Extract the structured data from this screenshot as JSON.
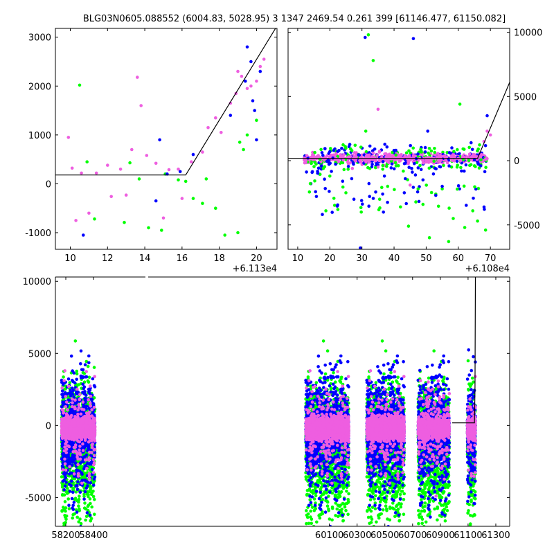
{
  "title": "BLG03N0605.088552 (6004.83, 5028.95)   3 1347 2469.54 0.261 399 [61146.477, 61150.082]",
  "colors": {
    "green": "#00ff00",
    "blue": "#0000ff",
    "pink": "#ee5ee0",
    "model": "#000000"
  },
  "chart_data": [
    {
      "id": "top-left",
      "type": "scatter",
      "xlim": [
        9.2,
        21.1
      ],
      "ylim": [
        -1340,
        3180
      ],
      "xticks": [
        10,
        12,
        14,
        16,
        18,
        20
      ],
      "yticks": [
        -1000,
        0,
        1000,
        2000,
        3000
      ],
      "yaxis_side": "left",
      "offset_label": "+6.113e4",
      "model_line": {
        "x": [
          9.2,
          16.2,
          21.1
        ],
        "y": [
          180,
          180,
          3230
        ]
      },
      "series": [
        {
          "name": "green",
          "x": [
            10.5,
            10.9,
            11.3,
            12.9,
            13.2,
            13.7,
            14.2,
            14.9,
            15.1,
            15.8,
            16.2,
            16.6,
            17.1,
            17.3,
            17.8,
            18.3,
            19.0,
            19.1,
            19.3,
            19.5,
            20.0
          ],
          "y": [
            2020,
            450,
            -720,
            -790,
            430,
            100,
            -900,
            -950,
            200,
            80,
            50,
            -300,
            -400,
            100,
            -500,
            -1050,
            -1000,
            850,
            700,
            1000,
            1300
          ]
        },
        {
          "name": "blue",
          "x": [
            10.7,
            14.6,
            14.8,
            15.2,
            15.9,
            16.6,
            18.6,
            19.4,
            19.5,
            19.7,
            19.8,
            19.9,
            20.0,
            20.2
          ],
          "y": [
            -1050,
            -350,
            900,
            200,
            250,
            600,
            1400,
            2100,
            2800,
            2500,
            1700,
            1500,
            900,
            2300
          ]
        },
        {
          "name": "pink",
          "x": [
            9.9,
            10.1,
            10.3,
            10.6,
            11.0,
            11.4,
            12.0,
            12.2,
            12.7,
            13.0,
            13.3,
            13.6,
            13.8,
            14.1,
            14.6,
            15.0,
            15.3,
            15.8,
            16.0,
            16.5,
            17.1,
            17.4,
            17.8,
            18.1,
            18.6,
            18.9,
            19.0,
            19.2,
            19.5,
            19.7,
            20.0,
            20.2,
            20.4
          ],
          "y": [
            950,
            320,
            -750,
            220,
            -600,
            220,
            380,
            -260,
            300,
            -230,
            700,
            2180,
            1600,
            580,
            420,
            -700,
            290,
            300,
            -300,
            450,
            650,
            1150,
            1350,
            1050,
            1650,
            1850,
            2300,
            2200,
            1950,
            2000,
            2100,
            2400,
            2550
          ]
        }
      ]
    },
    {
      "id": "top-right",
      "type": "scatter",
      "xlim": [
        7.0,
        76.0
      ],
      "ylim": [
        -6900,
        10300
      ],
      "xticks": [
        10,
        20,
        30,
        40,
        50,
        60,
        70
      ],
      "yticks": [
        -5000,
        0,
        5000,
        10000
      ],
      "yaxis_side": "right",
      "offset_label": "+6.108e4",
      "model_line": {
        "x": [
          7.0,
          66.0,
          76.0
        ],
        "y": [
          180,
          180,
          6100
        ]
      },
      "series": [
        {
          "name": "green",
          "x": [
            20.0,
            22.5,
            25.0,
            29.8,
            31.2,
            32.0,
            33.5,
            35.5,
            38.0,
            42.0,
            44.5,
            47.5,
            49.0,
            51.0,
            53.0,
            55.0,
            57.0,
            60.5,
            62.0,
            64.5,
            66.0,
            68.5
          ],
          "y": [
            -1200,
            -3800,
            -2500,
            -4000,
            2300,
            9800,
            7800,
            -3000,
            -2000,
            -3600,
            -5100,
            -2200,
            -3400,
            -6000,
            -2600,
            -2200,
            -6300,
            4400,
            -5200,
            -3900,
            -4700,
            -5400
          ]
        },
        {
          "name": "blue",
          "x": [
            20.0,
            24.0,
            27.5,
            29.5,
            31.0,
            34.0,
            37.0,
            40.0,
            43.5,
            46.0,
            49.0,
            50.5,
            53.0,
            55.0,
            58.0,
            61.0,
            64.0,
            67.0,
            69.0
          ],
          "y": [
            700,
            -1600,
            -3000,
            -6800,
            9600,
            900,
            -1200,
            800,
            -1400,
            9500,
            -1500,
            2300,
            -2700,
            -2000,
            1000,
            -800,
            1400,
            -400,
            3500
          ]
        },
        {
          "name": "pink",
          "x": [
            12,
            14,
            16,
            18,
            20,
            22,
            24,
            26,
            28,
            30,
            32,
            34,
            35,
            36,
            38,
            40,
            42,
            44,
            46,
            48,
            50,
            52,
            54,
            56,
            58,
            60,
            62,
            64,
            66,
            68,
            69,
            70,
            45,
            27,
            35
          ],
          "y": [
            200,
            150,
            250,
            180,
            220,
            160,
            240,
            200,
            210,
            190,
            230,
            170,
            4000,
            200,
            260,
            180,
            210,
            190,
            240,
            150,
            210,
            200,
            230,
            170,
            220,
            180,
            250,
            190,
            300,
            1500,
            2300,
            2000,
            -1900,
            -600,
            -500
          ]
        }
      ]
    },
    {
      "id": "bottom",
      "type": "scatter",
      "xlim": [
        58125,
        61400
      ],
      "ylim": [
        -7000,
        10300
      ],
      "xticks": [
        58200,
        58400,
        60100,
        60300,
        60500,
        60700,
        60900,
        61100,
        61300
      ],
      "yticks": [
        -5000,
        0,
        5000,
        10000
      ],
      "yaxis_side": "left",
      "axis_break": true,
      "model_line": {
        "x": [
          60985,
          61146,
          61150,
          61153
        ],
        "y": [
          180,
          180,
          2400,
          10300
        ]
      },
      "seasons": [
        {
          "x_from": 58170,
          "x_to": 58410,
          "core_half_spread": 700
        },
        {
          "x_from": 59930,
          "x_to": 60240,
          "core_half_spread": 800
        },
        {
          "x_from": 60370,
          "x_to": 60640,
          "core_half_spread": 800
        },
        {
          "x_from": 60740,
          "x_to": 60965,
          "core_half_spread": 700
        },
        {
          "x_from": 61095,
          "x_to": 61153,
          "core_half_spread": 700
        }
      ]
    }
  ]
}
